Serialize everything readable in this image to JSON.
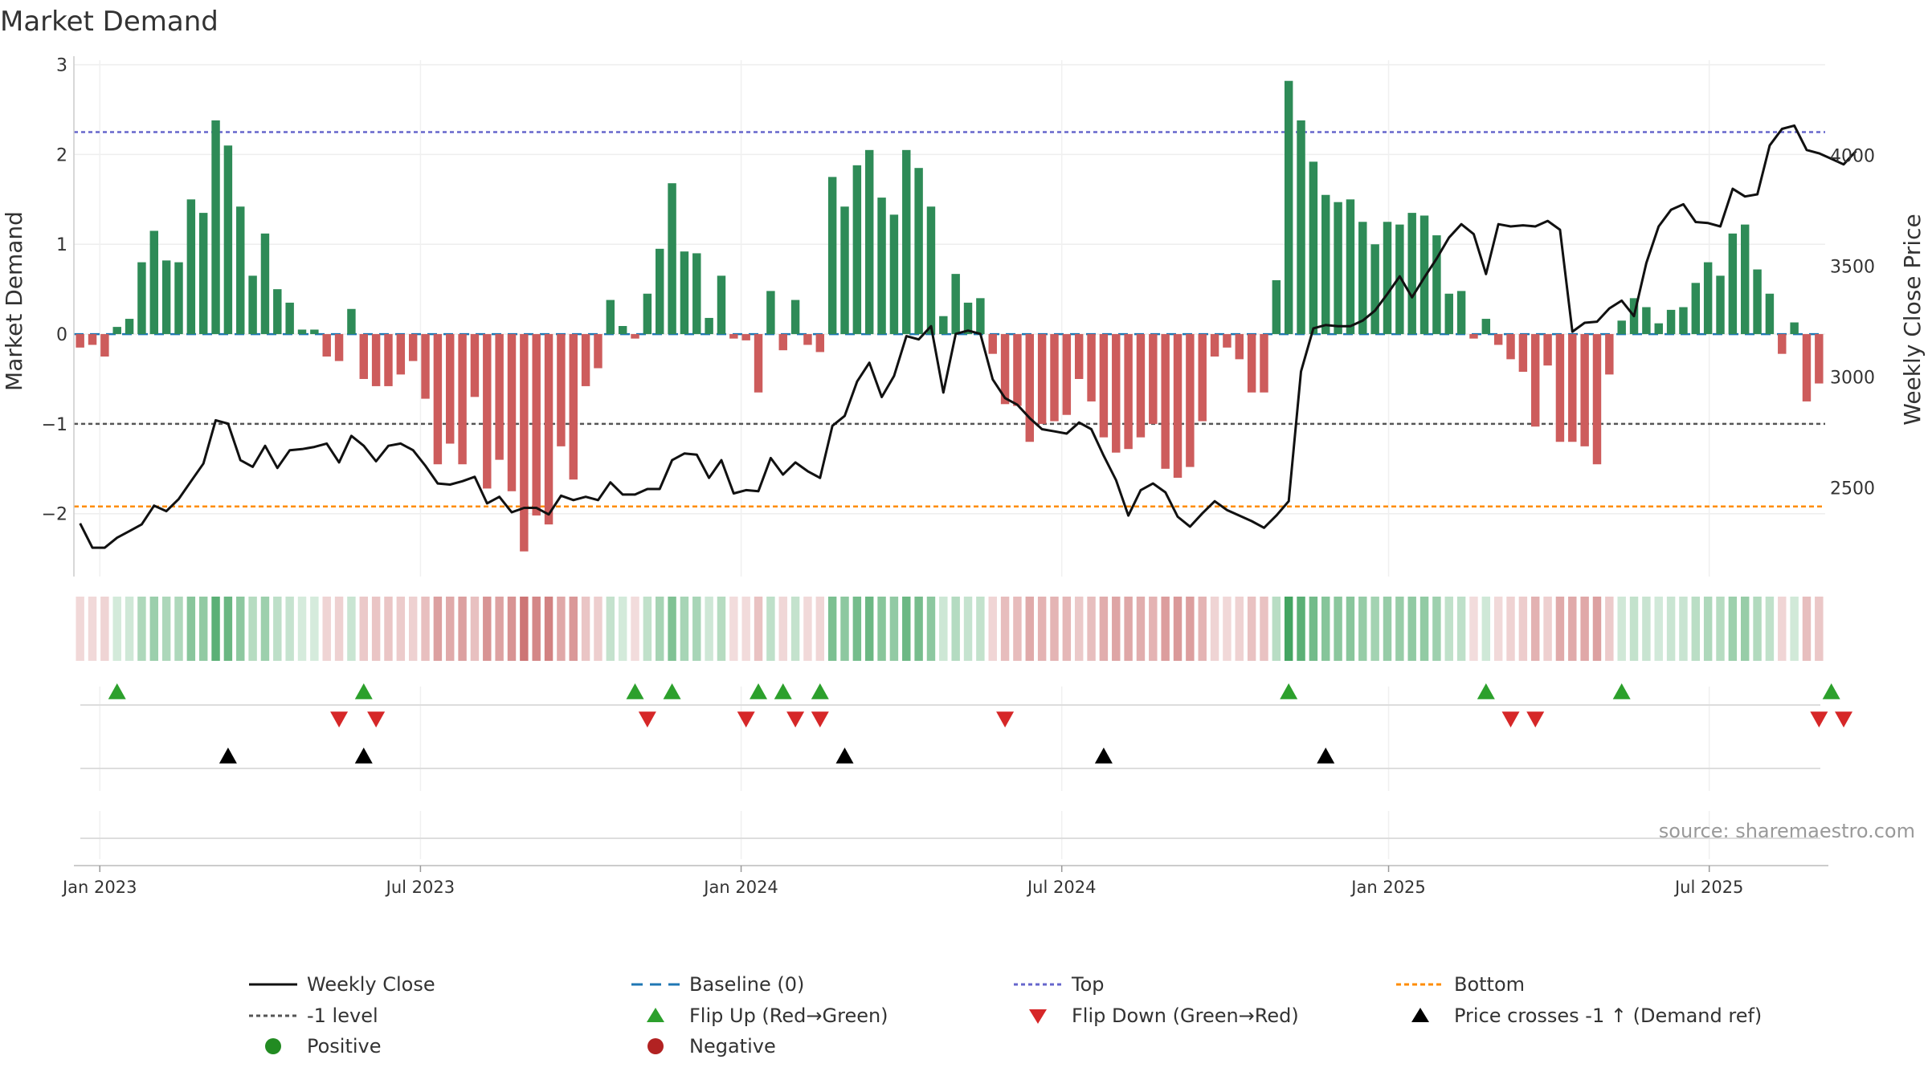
{
  "chart_data": {
    "type": "bar",
    "title": "Market Demand",
    "ylabel": "Market Demand",
    "y2label": "Weekly Close Price",
    "ylim": [
      -2.7,
      3.05
    ],
    "y2lim": [
      2100,
      4430
    ],
    "yticks": [
      "3",
      "2",
      "1",
      "0",
      "−1",
      "−2"
    ],
    "ytick_values": [
      3,
      2,
      1,
      0,
      -1,
      -2
    ],
    "y2ticks": [
      "4000",
      "3500",
      "3000",
      "2500"
    ],
    "y2tick_values": [
      4000,
      3500,
      3000,
      2500
    ],
    "xticks": [
      "Jan 2023",
      "Jul 2023",
      "Jan 2024",
      "Jul 2024",
      "Jan 2025",
      "Jul 2025"
    ],
    "xtick_weeks": [
      1.6,
      27.6,
      53.6,
      79.6,
      106.1,
      132.1
    ],
    "reference_lines": {
      "top": 2.25,
      "minus_one": -1,
      "bottom": -1.92,
      "baseline": 0
    },
    "demand": [
      -0.15,
      -0.12,
      -0.25,
      0.08,
      0.17,
      0.8,
      1.15,
      0.82,
      0.8,
      1.5,
      1.35,
      2.38,
      2.1,
      1.42,
      0.65,
      1.12,
      0.5,
      0.35,
      0.05,
      0.05,
      -0.25,
      -0.3,
      0.28,
      -0.5,
      -0.58,
      -0.58,
      -0.45,
      -0.3,
      -0.72,
      -1.45,
      -1.22,
      -1.45,
      -0.7,
      -1.72,
      -1.4,
      -1.75,
      -2.42,
      -2.02,
      -2.12,
      -1.25,
      -1.62,
      -0.58,
      -0.38,
      0.38,
      0.09,
      -0.05,
      0.45,
      0.95,
      1.68,
      0.92,
      0.9,
      0.18,
      0.65,
      -0.05,
      -0.07,
      -0.65,
      0.48,
      -0.18,
      0.38,
      -0.12,
      -0.2,
      1.75,
      1.42,
      1.88,
      2.05,
      1.52,
      1.33,
      2.05,
      1.85,
      1.42,
      0.2,
      0.67,
      0.35,
      0.4,
      -0.22,
      -0.78,
      -0.8,
      -1.2,
      -1.0,
      -0.97,
      -0.9,
      -0.5,
      -0.75,
      -1.15,
      -1.32,
      -1.28,
      -1.15,
      -1.0,
      -1.5,
      -1.6,
      -1.48,
      -0.97,
      -0.25,
      -0.15,
      -0.28,
      -0.65,
      -0.65,
      0.6,
      2.82,
      2.38,
      1.92,
      1.55,
      1.47,
      1.5,
      1.25,
      1.0,
      1.25,
      1.22,
      1.35,
      1.32,
      1.1,
      0.45,
      0.48,
      -0.05,
      0.17,
      -0.12,
      -0.28,
      -0.42,
      -1.03,
      -0.35,
      -1.2,
      -1.2,
      -1.25,
      -1.45,
      -0.45,
      0.15,
      0.4,
      0.3,
      0.12,
      0.27,
      0.3,
      0.57,
      0.8,
      0.65,
      1.12,
      1.22,
      0.72,
      0.45,
      -0.22,
      0.13,
      -0.75,
      -0.55
    ],
    "series": [
      {
        "name": "Weekly Close",
        "axis": "right",
        "values": [
          2340,
          2230,
          2230,
          2275,
          2305,
          2335,
          2420,
          2395,
          2450,
          2530,
          2610,
          2805,
          2790,
          2625,
          2595,
          2690,
          2590,
          2670,
          2675,
          2685,
          2700,
          2615,
          2735,
          2690,
          2620,
          2690,
          2700,
          2670,
          2600,
          2520,
          2515,
          2530,
          2550,
          2430,
          2460,
          2390,
          2410,
          2410,
          2380,
          2465,
          2445,
          2460,
          2445,
          2525,
          2470,
          2470,
          2495,
          2495,
          2625,
          2655,
          2650,
          2545,
          2625,
          2475,
          2490,
          2485,
          2635,
          2560,
          2615,
          2575,
          2545,
          2780,
          2825,
          2980,
          3065,
          2910,
          3005,
          3185,
          3170,
          3230,
          2930,
          3195,
          3210,
          3195,
          2990,
          2905,
          2875,
          2815,
          2765,
          2755,
          2745,
          2795,
          2765,
          2645,
          2535,
          2375,
          2490,
          2520,
          2480,
          2370,
          2325,
          2385,
          2440,
          2400,
          2375,
          2350,
          2320,
          2375,
          2440,
          3025,
          3220,
          3235,
          3230,
          3230,
          3255,
          3300,
          3375,
          3455,
          3360,
          3450,
          3535,
          3630,
          3690,
          3645,
          3465,
          3690,
          3680,
          3685,
          3680,
          3705,
          3665,
          3205,
          3245,
          3250,
          3310,
          3345,
          3275,
          3515,
          3680,
          3755,
          3780,
          3700,
          3695,
          3680,
          3850,
          3815,
          3825,
          4045,
          4120,
          4135,
          4025,
          4010,
          3985,
          3960,
          4020
        ]
      }
    ],
    "flip_up_weeks": [
      3,
      23,
      45,
      48,
      55,
      57,
      60,
      98,
      114,
      125,
      142
    ],
    "flip_down_weeks": [
      21,
      24,
      46,
      54,
      58,
      60,
      75,
      116,
      118,
      141,
      143
    ],
    "price_cross_weeks": [
      12,
      23,
      62,
      83,
      101
    ],
    "source": "source: sharemaestro.com",
    "colors": {
      "positive": "#2e8b57",
      "negative": "#cd5c5c",
      "price": "#111111",
      "baseline": "#1f77b4",
      "top": "#6666cc",
      "minus_one": "#555555",
      "bottom": "#ff8c00",
      "flip_up": "#2ca02c",
      "flip_down": "#d62728",
      "cross": "#000000",
      "positive_dot": "#228b22",
      "negative_dot": "#b22222"
    }
  },
  "legend": [
    {
      "label": "Weekly Close",
      "kind": "line"
    },
    {
      "label": "Baseline (0)",
      "kind": "baseline"
    },
    {
      "label": "Top",
      "kind": "top"
    },
    {
      "label": "Bottom",
      "kind": "bottom"
    },
    {
      "label": "-1 level",
      "kind": "minus_one"
    },
    {
      "label": "Flip Up (Red→Green)",
      "kind": "flip_up"
    },
    {
      "label": "Flip Down (Green→Red)",
      "kind": "flip_down"
    },
    {
      "label": "Price crosses -1 ↑ (Demand ref)",
      "kind": "cross"
    },
    {
      "label": "Positive",
      "kind": "positive_dot"
    },
    {
      "label": "Negative",
      "kind": "negative_dot"
    }
  ]
}
